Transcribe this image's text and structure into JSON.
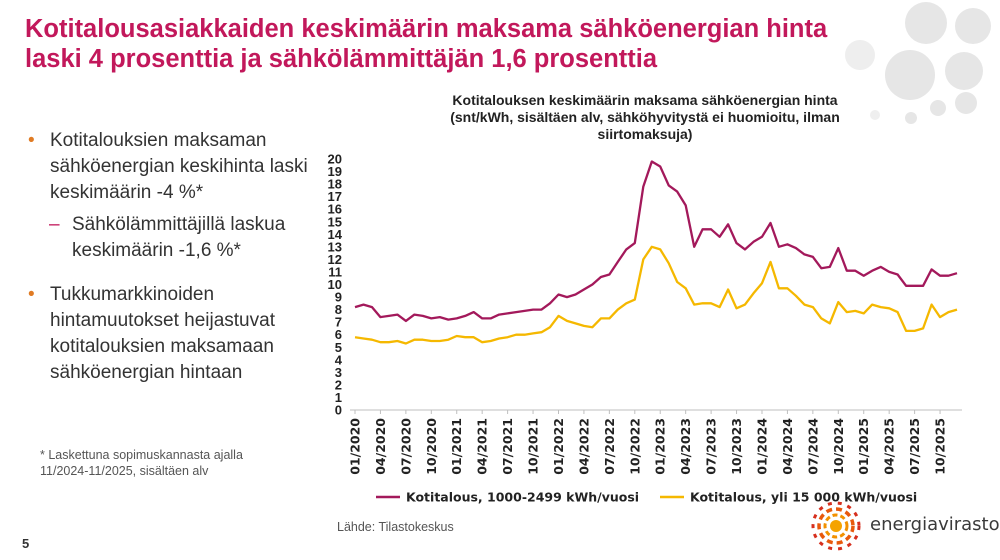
{
  "page": {
    "title_line1": "Kotitalousasiakkaiden keskimäärin maksama sähköenergian hinta",
    "title_line2": "laski 4 prosenttia ja sähkölämmittäjän 1,6 prosenttia",
    "bullet1": "Kotitalouksien maksaman sähköenergian keskihinta laski keskimäärin -4 %*",
    "sub_bullet": "Sähkölämmittäjillä laskua keskimäärin -1,6 %*",
    "bullet2": "Tukkumarkkinoiden hintamuutokset heijastuvat kotitalouksien maksamaan sähköenergian hintaan",
    "footnote": "* Laskettuna sopimuskannasta ajalla 11/2024-11/2025, sisältäen alv",
    "source": "Lähde: Tilastokeskus",
    "page_number": "5",
    "logo_text": "energiavirasto",
    "bullet_char": "•",
    "dash_char": "–"
  },
  "colors": {
    "accent": "#c2185b",
    "series1": "#a3195b",
    "series2": "#f5b800",
    "bullet": "#e07b24"
  },
  "chart_data": {
    "type": "line",
    "title_line1": "Kotitalouksen keskimäärin maksama sähköenergian hinta",
    "title_line2": "(snt/kWh, sisältäen alv, sähköhyvitystä ei huomioitu, ilman",
    "title_line3": "siirtomaksuja)",
    "ylim": [
      0,
      20
    ],
    "yticks": [
      "0",
      "1",
      "2",
      "3",
      "4",
      "5",
      "6",
      "7",
      "8",
      "9",
      "10",
      "11",
      "12",
      "13",
      "14",
      "15",
      "16",
      "17",
      "18",
      "19",
      "20"
    ],
    "xtick_labels": [
      "01/2020",
      "04/2020",
      "07/2020",
      "10/2020",
      "01/2021",
      "04/2021",
      "07/2021",
      "10/2021",
      "01/2022",
      "04/2022",
      "07/2022",
      "10/2022",
      "01/2023",
      "04/2023",
      "07/2023",
      "10/2023",
      "01/2024",
      "04/2024",
      "07/2024",
      "10/2024",
      "01/2025",
      "04/2025",
      "07/2025",
      "10/2025"
    ],
    "series": [
      {
        "name": "Kotitalous, 1000-2499 kWh/vuosi",
        "values": [
          8.2,
          8.4,
          8.2,
          7.4,
          7.5,
          7.6,
          7.1,
          7.6,
          7.5,
          7.3,
          7.4,
          7.2,
          7.3,
          7.5,
          7.8,
          7.3,
          7.3,
          7.6,
          7.7,
          7.8,
          7.9,
          8.0,
          8.0,
          8.5,
          9.2,
          9.0,
          9.2,
          9.6,
          10.0,
          10.6,
          10.8,
          11.8,
          12.8,
          13.3,
          17.8,
          19.8,
          19.4,
          17.9,
          17.4,
          16.3,
          13.0,
          14.4,
          14.4,
          13.8,
          14.8,
          13.3,
          12.8,
          13.4,
          13.8,
          14.9,
          13.0,
          13.2,
          12.9,
          12.4,
          12.2,
          11.3,
          11.4,
          12.9,
          11.1,
          11.1,
          10.7,
          11.1,
          11.4,
          11.0,
          10.8,
          9.9,
          9.9,
          9.9,
          11.2,
          10.7,
          10.7,
          10.9
        ]
      },
      {
        "name": "Kotitalous, yli 15 000 kWh/vuosi",
        "values": [
          5.8,
          5.7,
          5.6,
          5.4,
          5.4,
          5.5,
          5.3,
          5.6,
          5.6,
          5.5,
          5.5,
          5.6,
          5.9,
          5.8,
          5.8,
          5.4,
          5.5,
          5.7,
          5.8,
          6.0,
          6.0,
          6.1,
          6.2,
          6.6,
          7.5,
          7.1,
          6.9,
          6.7,
          6.6,
          7.3,
          7.3,
          8.0,
          8.5,
          8.8,
          12.0,
          13.0,
          12.8,
          11.7,
          10.2,
          9.7,
          8.4,
          8.5,
          8.5,
          8.2,
          9.6,
          8.1,
          8.4,
          9.3,
          10.1,
          11.8,
          9.7,
          9.7,
          9.1,
          8.4,
          8.2,
          7.3,
          6.9,
          8.6,
          7.8,
          7.9,
          7.7,
          8.4,
          8.2,
          8.1,
          7.8,
          6.3,
          6.3,
          6.5,
          8.4,
          7.4,
          7.8,
          8.0
        ]
      }
    ]
  }
}
